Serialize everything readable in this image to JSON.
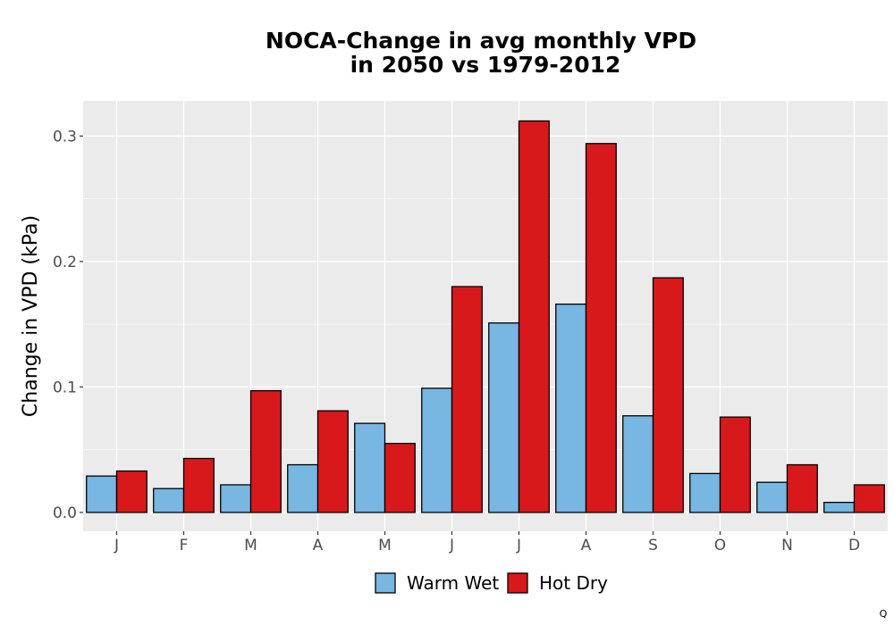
{
  "chart_data": {
    "type": "bar",
    "title_lines": [
      "NOCA-Change in avg monthly VPD",
      "in 2050 vs 1979-2012"
    ],
    "xlabel": "",
    "ylabel": "Change in VPD (kPa)",
    "categories": [
      "J",
      "F",
      "M",
      "A",
      "M",
      "J",
      "J",
      "A",
      "S",
      "O",
      "N",
      "D"
    ],
    "series": [
      {
        "name": "Warm Wet",
        "color": "#78b7e1",
        "values": [
          0.029,
          0.019,
          0.022,
          0.038,
          0.071,
          0.099,
          0.151,
          0.166,
          0.077,
          0.031,
          0.024,
          0.008
        ]
      },
      {
        "name": "Hot Dry",
        "color": "#d7191c",
        "values": [
          0.033,
          0.043,
          0.097,
          0.081,
          0.055,
          0.18,
          0.312,
          0.294,
          0.187,
          0.076,
          0.038,
          0.022
        ]
      }
    ],
    "ylim": [
      -0.015,
      0.328
    ],
    "yticks": [
      0.0,
      0.1,
      0.2,
      0.3
    ],
    "ytick_labels": [
      "0.0",
      "0.1",
      "0.2",
      "0.3"
    ],
    "grid": true,
    "legend_position": "bottom",
    "panel_color": "#ebebeb",
    "grid_color": "#ffffff",
    "bar_edge_color": "#000000"
  },
  "corner_mark": "Q"
}
